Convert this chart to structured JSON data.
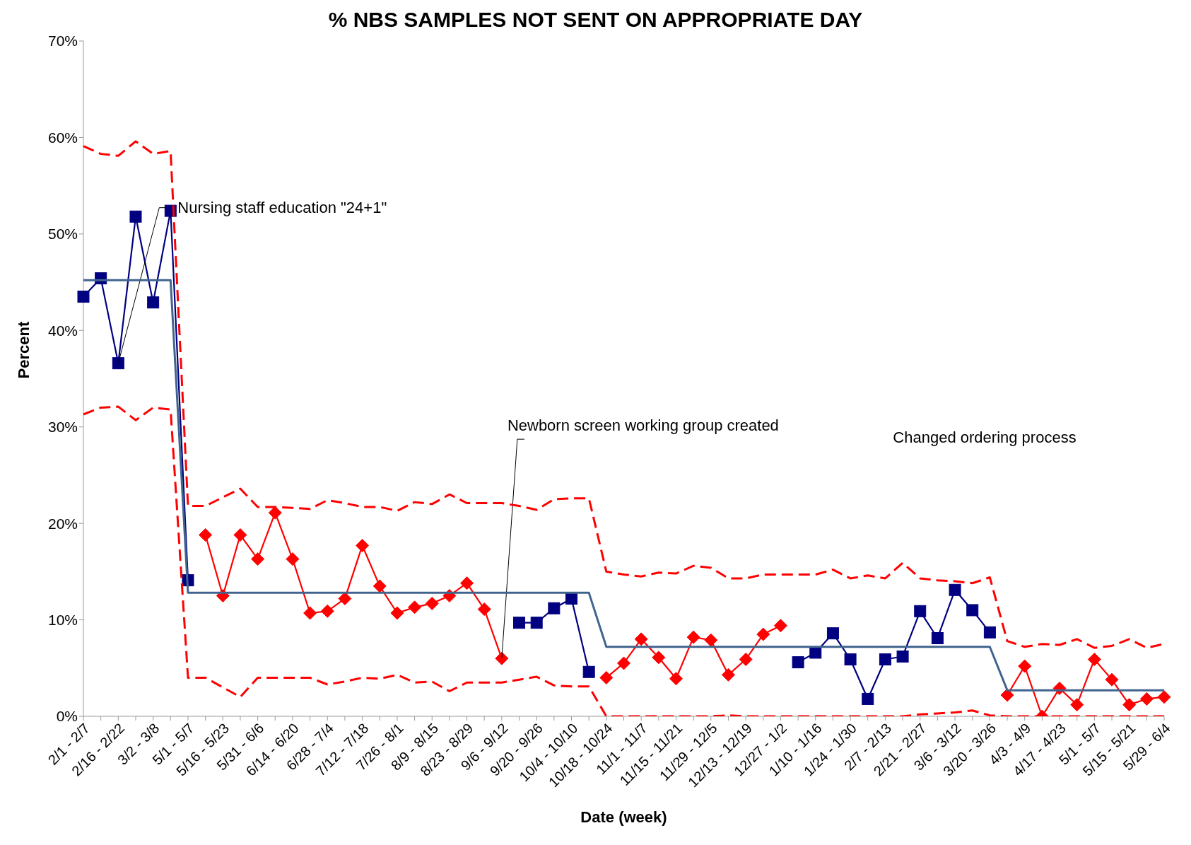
{
  "chart_data": {
    "type": "line",
    "title": "% NBS SAMPLES NOT SENT ON APPROPRIATE DAY",
    "xlabel": "Date (week)",
    "ylabel": "Percent",
    "categories": [
      "2/1 - 2/7",
      null,
      "2/16 - 2/22",
      null,
      "3/2 - 3/8",
      null,
      "5/1 - 5/7",
      null,
      "5/16 - 5/23",
      null,
      "5/31 - 6/6",
      null,
      "6/14 - 6/20",
      null,
      "6/28 - 7/4",
      null,
      "7/12 - 7/18",
      null,
      "7/26 - 8/1",
      null,
      "8/9 - 8/15",
      null,
      "8/23 - 8/29",
      null,
      "9/6 - 9/12",
      null,
      "9/20 - 9/26",
      null,
      "10/4 - 10/10",
      null,
      "10/18 - 10/24",
      null,
      "11/1 - 11/7",
      null,
      "11/15 - 11/21",
      null,
      "11/29 - 12/5",
      null,
      "12/13 - 12/19",
      null,
      "12/27 - 1/2",
      null,
      "1/10 - 1/16",
      null,
      "1/24 - 1/30",
      null,
      "2/7 - 2/13",
      null,
      "2/21 - 2/27",
      null,
      "3/6 - 3/12",
      null,
      "3/20 - 3/26",
      null,
      "4/3 - 4/9",
      null,
      "4/17 - 4/23",
      null,
      "5/1 - 5/7",
      null,
      "5/15 - 5/21",
      null,
      "5/29 - 6/4"
    ],
    "series": [
      {
        "color": "#000080",
        "marker": "square",
        "line_style": "solid",
        "values": [
          43.5,
          45.4,
          36.6,
          51.8,
          42.9,
          52.4,
          14.1,
          null,
          null,
          null,
          null,
          null,
          null,
          null,
          null,
          null,
          null,
          null,
          null,
          null,
          null,
          null,
          null,
          null,
          null,
          9.7,
          9.7,
          11.2,
          12.2,
          4.6,
          null,
          null,
          null,
          null,
          null,
          null,
          null,
          null,
          null,
          null,
          null,
          5.6,
          6.6,
          8.6,
          5.9,
          1.8,
          5.9,
          6.2,
          10.9,
          8.1,
          13.1,
          11.0,
          8.7,
          null,
          null,
          null,
          null,
          null,
          null,
          null,
          null,
          null,
          null
        ]
      },
      {
        "color": "#ff0000",
        "marker": "diamond",
        "line_style": "solid",
        "values": [
          null,
          null,
          null,
          null,
          null,
          null,
          null,
          18.8,
          12.5,
          18.8,
          16.3,
          21.1,
          16.3,
          10.7,
          10.9,
          12.2,
          17.7,
          13.5,
          10.7,
          11.3,
          11.7,
          12.5,
          13.8,
          11.1,
          6.0,
          null,
          null,
          null,
          null,
          null,
          4.0,
          5.5,
          8.0,
          6.1,
          3.9,
          8.2,
          7.9,
          4.3,
          5.9,
          8.5,
          9.4,
          null,
          null,
          null,
          null,
          null,
          null,
          null,
          null,
          null,
          null,
          null,
          null,
          2.2,
          5.2,
          0,
          2.9,
          1.2,
          5.9,
          3.8,
          1.2,
          1.8,
          2.0
        ]
      },
      {
        "color": "#41648f",
        "marker": "none",
        "line_style": "solid",
        "values": [
          45.2,
          45.2,
          45.2,
          45.2,
          45.2,
          45.2,
          12.8,
          12.8,
          12.8,
          12.8,
          12.8,
          12.8,
          12.8,
          12.8,
          12.8,
          12.8,
          12.8,
          12.8,
          12.8,
          12.8,
          12.8,
          12.8,
          12.8,
          12.8,
          12.8,
          12.8,
          12.8,
          12.8,
          12.8,
          12.8,
          7.2,
          7.2,
          7.2,
          7.2,
          7.2,
          7.2,
          7.2,
          7.2,
          7.2,
          7.2,
          7.2,
          7.2,
          7.2,
          7.2,
          7.2,
          7.2,
          7.2,
          7.2,
          7.2,
          7.2,
          7.2,
          7.2,
          7.2,
          2.7,
          2.7,
          2.7,
          2.7,
          2.7,
          2.7,
          2.7,
          2.7,
          2.7,
          2.7
        ]
      },
      {
        "color": "#ff0000",
        "marker": "none",
        "line_style": "dashed",
        "values": [
          59.1,
          58.3,
          58.1,
          59.6,
          58.3,
          58.6,
          21.8,
          21.8,
          22.7,
          23.6,
          21.7,
          21.7,
          21.6,
          21.5,
          22.4,
          22.1,
          21.7,
          21.7,
          21.3,
          22.2,
          22.0,
          23.0,
          22.1,
          22.1,
          22.1,
          21.8,
          21.4,
          22.5,
          22.6,
          22.6,
          15.0,
          14.7,
          14.5,
          14.9,
          14.8,
          15.6,
          15.4,
          14.3,
          14.3,
          14.7,
          14.7,
          14.7,
          14.7,
          15.2,
          14.3,
          14.6,
          14.3,
          15.9,
          14.3,
          14.1,
          14.0,
          13.8,
          14.4,
          7.8,
          7.2,
          7.5,
          7.4,
          8.0,
          7.1,
          7.3,
          8.0,
          7.1,
          7.5
        ]
      },
      {
        "color": "#ff0000",
        "marker": "none",
        "line_style": "dashed",
        "values": [
          31.3,
          32.0,
          32.1,
          30.7,
          32.0,
          31.8,
          4.0,
          4.0,
          3.0,
          2.0,
          4.0,
          4.0,
          4.0,
          4.0,
          3.3,
          3.6,
          4.0,
          3.9,
          4.3,
          3.5,
          3.6,
          2.6,
          3.5,
          3.5,
          3.5,
          3.8,
          4.1,
          3.2,
          3.1,
          3.1,
          0,
          0,
          0,
          0,
          0,
          0,
          0,
          0.1,
          0,
          0,
          0,
          0,
          0,
          0,
          0,
          0,
          0,
          0,
          0.2,
          0.3,
          0.4,
          0.6,
          0.1,
          0,
          0,
          0,
          0,
          0,
          0,
          0,
          0,
          0,
          0
        ]
      }
    ],
    "ylim": [
      0,
      70
    ],
    "yticks": [
      {
        "value": 0,
        "label": "0%"
      },
      {
        "value": 10,
        "label": "10%"
      },
      {
        "value": 20,
        "label": "20%"
      },
      {
        "value": 30,
        "label": "30%"
      },
      {
        "value": 40,
        "label": "40%"
      },
      {
        "value": 50,
        "label": "50%"
      },
      {
        "value": 60,
        "label": "60%"
      },
      {
        "value": 70,
        "label": "70%"
      }
    ],
    "grid": false,
    "annotations": [
      {
        "text": "Nursing staff education \"24+1\"",
        "x": "2/16 - 2/22",
        "y": 36.6
      },
      {
        "text": "Newborn screen working group created",
        "x": "9/6 - 9/12",
        "y": 6.0
      },
      "Changed ordering process"
    ]
  }
}
